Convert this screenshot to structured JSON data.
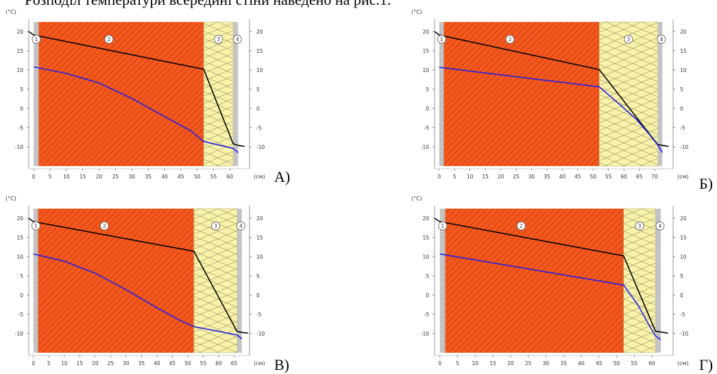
{
  "header_text": "Розподіл температури всередині стіни наведено на рис.1.",
  "axis": {
    "ylabel": "(°C)",
    "xunit": "(см)"
  },
  "colors": {
    "brick": "#f4581e",
    "brick_hatch": "#c23a0a",
    "insulation": "#f9f2a9",
    "insulation_stroke": "#9a9468",
    "plaster": "#c9c9c9",
    "temperature_line": "#000000",
    "dewpoint_line": "#1e1ee6"
  },
  "chart_data": [
    {
      "panel_label": "А)",
      "type": "line",
      "ylabel": "(°C)",
      "xlabel": "(см)",
      "xlim": [
        -1.5,
        66
      ],
      "ylim": [
        -15,
        22.5
      ],
      "xticks": [
        0,
        5,
        10,
        15,
        20,
        25,
        30,
        35,
        40,
        45,
        50,
        55,
        60
      ],
      "yticks": [
        20,
        15,
        10,
        5,
        0,
        -5,
        -10
      ],
      "layers": [
        {
          "id": "1",
          "material": "plaster",
          "x0": 0,
          "x1": 1.5
        },
        {
          "id": "2",
          "material": "brick",
          "x0": 1.5,
          "x1": 52
        },
        {
          "id": "3",
          "material": "insulation",
          "x0": 52,
          "x1": 61
        },
        {
          "id": "4",
          "material": "plaster",
          "x0": 61,
          "x1": 62.5
        }
      ],
      "layer_labels": [
        {
          "text": "1",
          "x": 0.8,
          "y": 18
        },
        {
          "text": "2",
          "x": 23,
          "y": 18
        },
        {
          "text": "3",
          "x": 56.5,
          "y": 18
        },
        {
          "text": "4",
          "x": 62.3,
          "y": 18
        }
      ],
      "series": [
        {
          "role": "temperature",
          "color": "#000000",
          "points": [
            [
              -1.5,
              20
            ],
            [
              0,
              19.1
            ],
            [
              52,
              10.2
            ],
            [
              61,
              -9.2
            ],
            [
              62.5,
              -9.6
            ],
            [
              64.5,
              -9.9
            ]
          ]
        },
        {
          "role": "dewpoint",
          "color": "#1e1ee6",
          "points": [
            [
              0,
              10.8
            ],
            [
              10,
              9.1
            ],
            [
              20,
              6.6
            ],
            [
              30,
              2.6
            ],
            [
              40,
              -2.1
            ],
            [
              48,
              -5.8
            ],
            [
              52,
              -8.6
            ],
            [
              61,
              -10.4
            ],
            [
              62.5,
              -11.5
            ]
          ]
        }
      ]
    },
    {
      "panel_label": "Б)",
      "type": "line",
      "ylabel": "(°C)",
      "xlabel": "(см)",
      "xlim": [
        -1.5,
        76
      ],
      "ylim": [
        -15,
        22.5
      ],
      "xticks": [
        0,
        5,
        10,
        15,
        20,
        25,
        30,
        35,
        40,
        45,
        50,
        55,
        60,
        65,
        70
      ],
      "yticks": [
        20,
        15,
        10,
        5,
        0,
        -5,
        -10
      ],
      "layers": [
        {
          "id": "1",
          "material": "plaster",
          "x0": 0,
          "x1": 1.5
        },
        {
          "id": "2",
          "material": "brick",
          "x0": 1.5,
          "x1": 52
        },
        {
          "id": "3",
          "material": "insulation",
          "x0": 52,
          "x1": 71
        },
        {
          "id": "4",
          "material": "plaster",
          "x0": 71,
          "x1": 72.5
        }
      ],
      "layer_labels": [
        {
          "text": "1",
          "x": 0.8,
          "y": 18
        },
        {
          "text": "2",
          "x": 23,
          "y": 18
        },
        {
          "text": "3",
          "x": 61.5,
          "y": 18
        },
        {
          "text": "4",
          "x": 72.2,
          "y": 18
        }
      ],
      "series": [
        {
          "role": "temperature",
          "color": "#000000",
          "points": [
            [
              -1.5,
              20
            ],
            [
              0,
              19.1
            ],
            [
              52,
              10.1
            ],
            [
              71,
              -9.4
            ],
            [
              72.5,
              -9.6
            ],
            [
              74.5,
              -9.9
            ]
          ]
        },
        {
          "role": "dewpoint",
          "color": "#1e1ee6",
          "points": [
            [
              0,
              10.7
            ],
            [
              52,
              5.6
            ],
            [
              58,
              1.5
            ],
            [
              64,
              -2.8
            ],
            [
              68,
              -6.5
            ],
            [
              71,
              -9.5
            ],
            [
              72.5,
              -11.5
            ]
          ]
        }
      ]
    },
    {
      "panel_label": "В)",
      "type": "line",
      "ylabel": "(°C)",
      "xlabel": "(см)",
      "xlim": [
        -1.5,
        70
      ],
      "ylim": [
        -15,
        22.5
      ],
      "xticks": [
        0,
        5,
        10,
        15,
        20,
        25,
        30,
        35,
        40,
        45,
        50,
        55,
        60,
        65
      ],
      "yticks": [
        20,
        15,
        10,
        5,
        0,
        -5,
        -10
      ],
      "layers": [
        {
          "id": "1",
          "material": "plaster",
          "x0": 0,
          "x1": 1.5
        },
        {
          "id": "2",
          "material": "brick",
          "x0": 1.5,
          "x1": 52
        },
        {
          "id": "3",
          "material": "insulation",
          "x0": 52,
          "x1": 66
        },
        {
          "id": "4",
          "material": "plaster",
          "x0": 66,
          "x1": 67.5
        }
      ],
      "layer_labels": [
        {
          "text": "1",
          "x": 0.8,
          "y": 18
        },
        {
          "text": "2",
          "x": 23,
          "y": 18
        },
        {
          "text": "3",
          "x": 59,
          "y": 18
        },
        {
          "text": "4",
          "x": 67.2,
          "y": 18
        }
      ],
      "series": [
        {
          "role": "temperature",
          "color": "#000000",
          "points": [
            [
              -1.5,
              20
            ],
            [
              0,
              19.1
            ],
            [
              52,
              11.4
            ],
            [
              66,
              -9.5
            ],
            [
              67.5,
              -9.7
            ],
            [
              69.5,
              -9.9
            ]
          ]
        },
        {
          "role": "dewpoint",
          "color": "#1e1ee6",
          "points": [
            [
              0,
              10.7
            ],
            [
              10,
              8.8
            ],
            [
              20,
              5.7
            ],
            [
              30,
              1.4
            ],
            [
              40,
              -3.3
            ],
            [
              48,
              -6.8
            ],
            [
              52,
              -8.2
            ],
            [
              66,
              -10.4
            ],
            [
              67.5,
              -11.4
            ]
          ]
        }
      ]
    },
    {
      "panel_label": "Г)",
      "type": "line",
      "ylabel": "(°C)",
      "xlabel": "(см)",
      "xlim": [
        -1.5,
        66
      ],
      "ylim": [
        -15,
        22.5
      ],
      "xticks": [
        0,
        5,
        10,
        15,
        20,
        25,
        30,
        35,
        40,
        45,
        50,
        55,
        60
      ],
      "yticks": [
        20,
        15,
        10,
        5,
        0,
        -5,
        -10
      ],
      "layers": [
        {
          "id": "1",
          "material": "plaster",
          "x0": 0,
          "x1": 1.5
        },
        {
          "id": "2",
          "material": "brick",
          "x0": 1.5,
          "x1": 52
        },
        {
          "id": "3",
          "material": "insulation",
          "x0": 52,
          "x1": 61
        },
        {
          "id": "4",
          "material": "plaster",
          "x0": 61,
          "x1": 62.5
        }
      ],
      "layer_labels": [
        {
          "text": "1",
          "x": 0.8,
          "y": 18
        },
        {
          "text": "2",
          "x": 23,
          "y": 18
        },
        {
          "text": "3",
          "x": 56.5,
          "y": 18
        },
        {
          "text": "4",
          "x": 62.3,
          "y": 18
        }
      ],
      "series": [
        {
          "role": "temperature",
          "color": "#000000",
          "points": [
            [
              -1.5,
              20
            ],
            [
              0,
              19.1
            ],
            [
              52,
              10.2
            ],
            [
              61,
              -9.4
            ],
            [
              62.5,
              -9.6
            ],
            [
              64.5,
              -9.9
            ]
          ]
        },
        {
          "role": "dewpoint",
          "color": "#1e1ee6",
          "points": [
            [
              0,
              10.7
            ],
            [
              52,
              2.6
            ],
            [
              56,
              -2.5
            ],
            [
              59,
              -7.5
            ],
            [
              61,
              -10.6
            ],
            [
              62.5,
              -11.6
            ]
          ]
        }
      ]
    }
  ]
}
